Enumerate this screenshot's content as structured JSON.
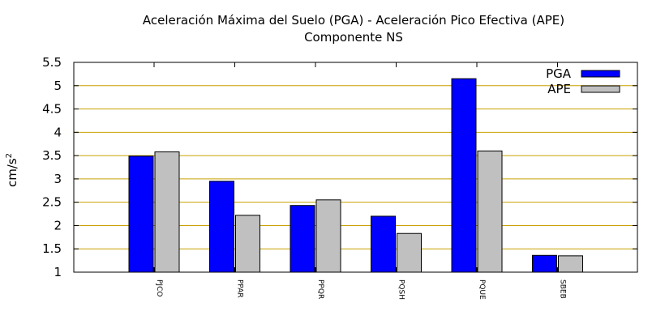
{
  "chart_data": {
    "type": "bar",
    "title": "Aceleración Máxima del Suelo (PGA) -  Aceleración Pico Efectiva (APE)",
    "subtitle": "Componente NS",
    "ylabel_base": "cm/s",
    "ylabel_exp": "2",
    "ylim": [
      1,
      5.5
    ],
    "yticks": [
      "1",
      "1.5",
      "2",
      "2.5",
      "3",
      "3.5",
      "4",
      "4.5",
      "5",
      "5.5"
    ],
    "categories": [
      "PJCO",
      "PPAR",
      "PPQR",
      "PQSH",
      "PQUE",
      "SBEB"
    ],
    "series": [
      {
        "name": "PGA",
        "color": "#0000ff",
        "values": [
          3.49,
          2.95,
          2.43,
          2.2,
          5.15,
          1.36
        ]
      },
      {
        "name": "APE",
        "color": "#c0c0c0",
        "values": [
          3.58,
          2.22,
          2.55,
          1.83,
          3.6,
          1.35
        ]
      }
    ],
    "grid": true,
    "grid_color": "#c8a000",
    "legend": "top-right"
  }
}
